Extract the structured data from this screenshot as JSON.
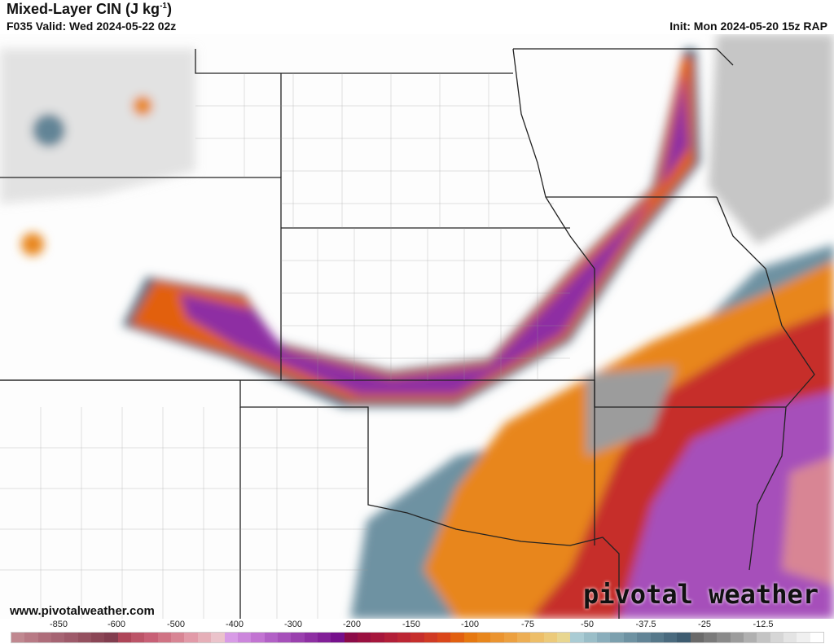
{
  "header": {
    "title": "Mixed-Layer CIN (J kg",
    "title_sup": "-1",
    "title_end": ")",
    "valid": "F035 Valid: Wed 2024-05-22 02z",
    "init": "Init: Mon 2024-05-20 15z RAP"
  },
  "watermark": {
    "url": "www.pivotalweather.com",
    "brand": "pivotal weather"
  },
  "colorbar": {
    "labels": [
      "-850",
      "-600",
      "-500",
      "-400",
      "-300",
      "-200",
      "-150",
      "-100",
      "-75",
      "-50",
      "-37.5",
      "-25",
      "-12.5"
    ],
    "colors": [
      "#c08890",
      "#b87a85",
      "#ae6d7a",
      "#a66473",
      "#9e5a6a",
      "#94505f",
      "#8b4656",
      "#823d4f",
      "#ae4558",
      "#bc5468",
      "#c86076",
      "#d07384",
      "#d88594",
      "#e29aa8",
      "#e6afb8",
      "#ebc3cb",
      "#d89be6",
      "#cc86dc",
      "#c274d2",
      "#b260c6",
      "#a650ba",
      "#9a40ae",
      "#8e2fa3",
      "#821f98",
      "#76108c",
      "#8c0b48",
      "#9a1040",
      "#a6163c",
      "#b21e38",
      "#bc2634",
      "#c62e2c",
      "#d03a24",
      "#da461a",
      "#e26010",
      "#e67810",
      "#e8861c",
      "#eb9430",
      "#eca040",
      "#edae54",
      "#edbe68",
      "#ecca7a",
      "#e8d690",
      "#aaccd4",
      "#9abec8",
      "#8aaebc",
      "#7ca0ae",
      "#6e92a2",
      "#628496",
      "#56788a",
      "#4a6a7e",
      "#3e5c70",
      "#6a6a6a",
      "#7a7a7a",
      "#8a8a8a",
      "#9c9c9c",
      "#b0b0b0",
      "#c4c4c4",
      "#d6d6d6",
      "#e4e4e4",
      "#f0f0f0",
      "#ffffff"
    ]
  }
}
